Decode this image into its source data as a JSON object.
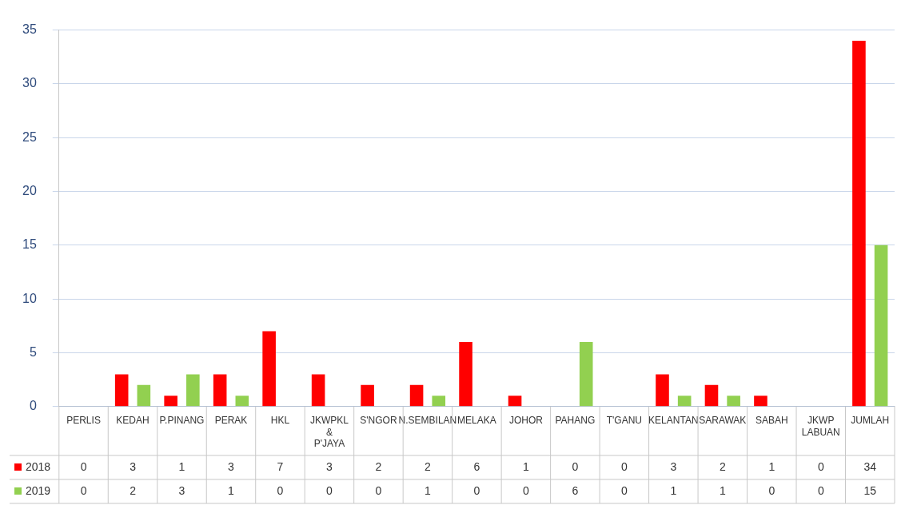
{
  "chart_data": {
    "type": "bar",
    "categories": [
      "PERLIS",
      "KEDAH",
      "P.PINANG",
      "PERAK",
      "HKL",
      "JKWPKL & P'JAYA",
      "S'NGOR",
      "N.SEMBILAN",
      "MELAKA",
      "JOHOR",
      "PAHANG",
      "T'GANU",
      "KELANTAN",
      "SARAWAK",
      "SABAH",
      "JKWP LABUAN",
      "JUMLAH"
    ],
    "series": [
      {
        "name": "2018",
        "color": "#ff0000",
        "values": [
          0,
          3,
          1,
          3,
          7,
          3,
          2,
          2,
          6,
          1,
          0,
          0,
          3,
          2,
          1,
          0,
          34
        ]
      },
      {
        "name": "2019",
        "color": "#92d050",
        "values": [
          0,
          2,
          3,
          1,
          0,
          0,
          0,
          1,
          0,
          0,
          6,
          0,
          1,
          1,
          0,
          0,
          15
        ]
      }
    ],
    "ylim": [
      0,
      35
    ],
    "yticks": [
      0,
      5,
      10,
      15,
      20,
      25,
      30,
      35
    ],
    "grid": "y",
    "legend": "bottom",
    "data_labels": true
  }
}
